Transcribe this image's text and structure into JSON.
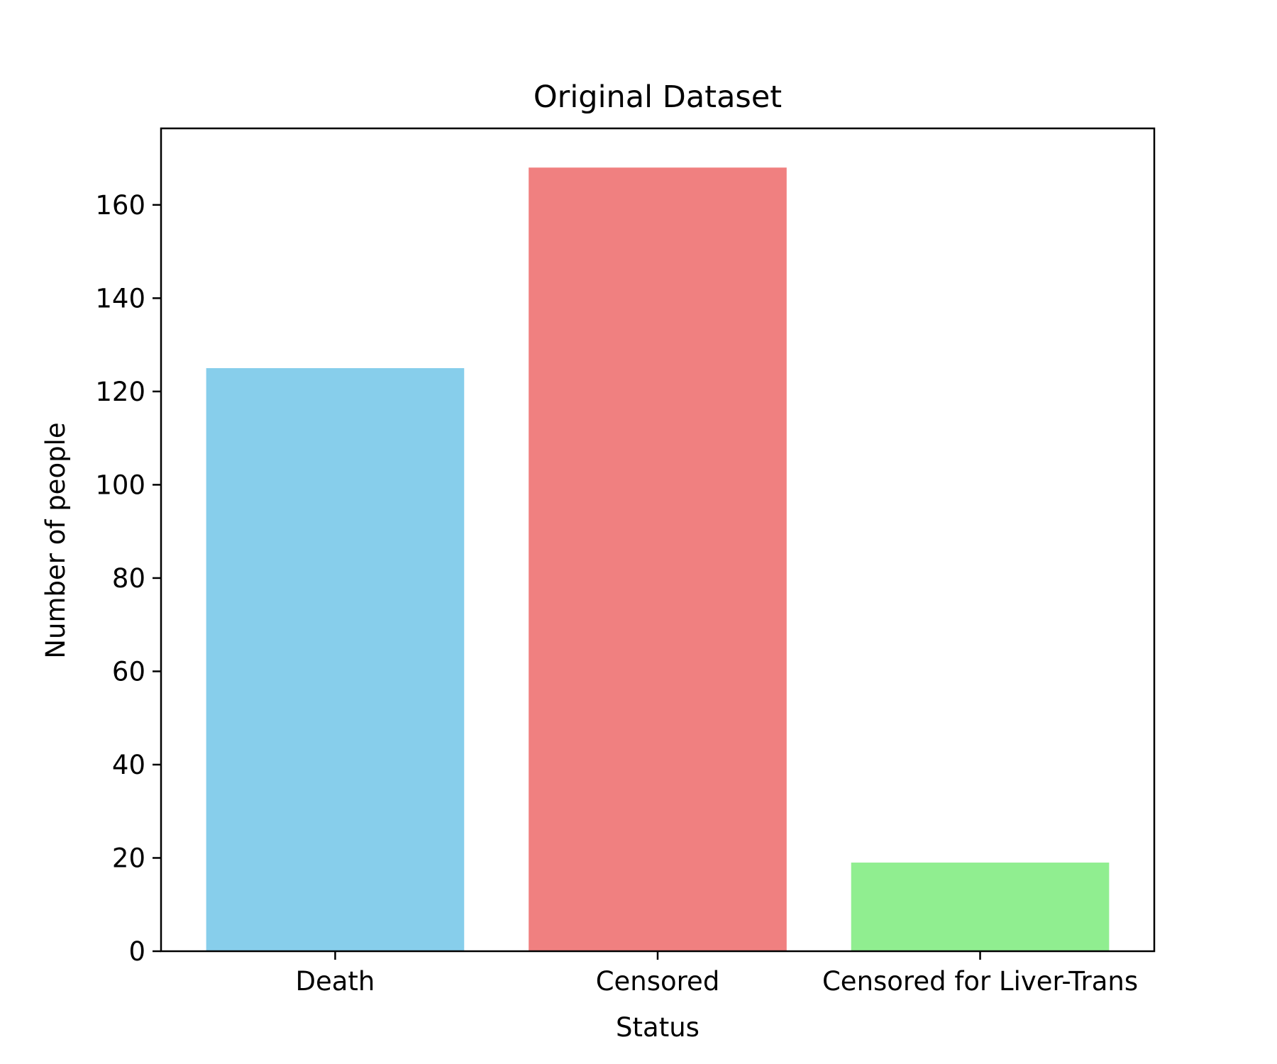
{
  "chart_data": {
    "type": "bar",
    "title": "Original Dataset",
    "xlabel": "Status",
    "ylabel": "Number of people",
    "categories": [
      "Death",
      "Censored",
      "Censored for Liver-Trans"
    ],
    "values": [
      125,
      168,
      19
    ],
    "colors": [
      "#87CEEB",
      "#F08080",
      "#90EE90"
    ],
    "ylim": [
      0,
      176.4
    ],
    "yticks": [
      0,
      20,
      40,
      60,
      80,
      100,
      120,
      140,
      160
    ],
    "grid": false,
    "legend": "none"
  }
}
